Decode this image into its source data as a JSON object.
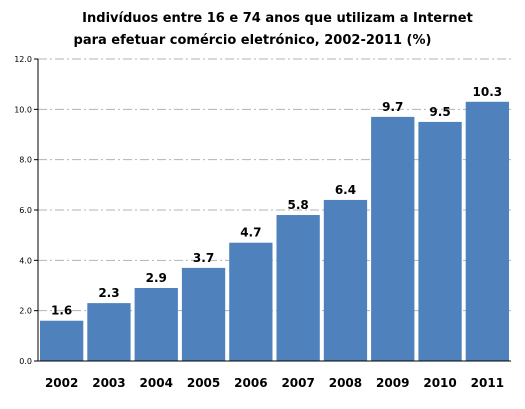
{
  "chart_data": {
    "type": "bar",
    "title_lines": [
      "Indivíduos entre 16 e 74 anos que utilizam a Internet",
      "para efetuar comércio eletrónico, 2002-2011 (%)"
    ],
    "categories": [
      "2002",
      "2003",
      "2004",
      "2005",
      "2006",
      "2007",
      "2008",
      "2009",
      "2010",
      "2011"
    ],
    "values": [
      1.6,
      2.3,
      2.9,
      3.7,
      4.7,
      5.8,
      6.4,
      9.7,
      9.5,
      10.3
    ],
    "data_labels": [
      "1.6",
      "2.3",
      "2.9",
      "3.7",
      "4.7",
      "5.8",
      "6.4",
      "9.7",
      "9.5",
      "10.3"
    ],
    "y_ticks": [
      "0.0",
      "2.0",
      "4.0",
      "6.0",
      "8.0",
      "10.0",
      "12.0"
    ],
    "ylim": [
      0,
      12
    ],
    "grid": true,
    "legend": "none",
    "colors": {
      "bar": "#4f81bd",
      "grid": "#b3b3b3",
      "axis": "#000000"
    }
  }
}
